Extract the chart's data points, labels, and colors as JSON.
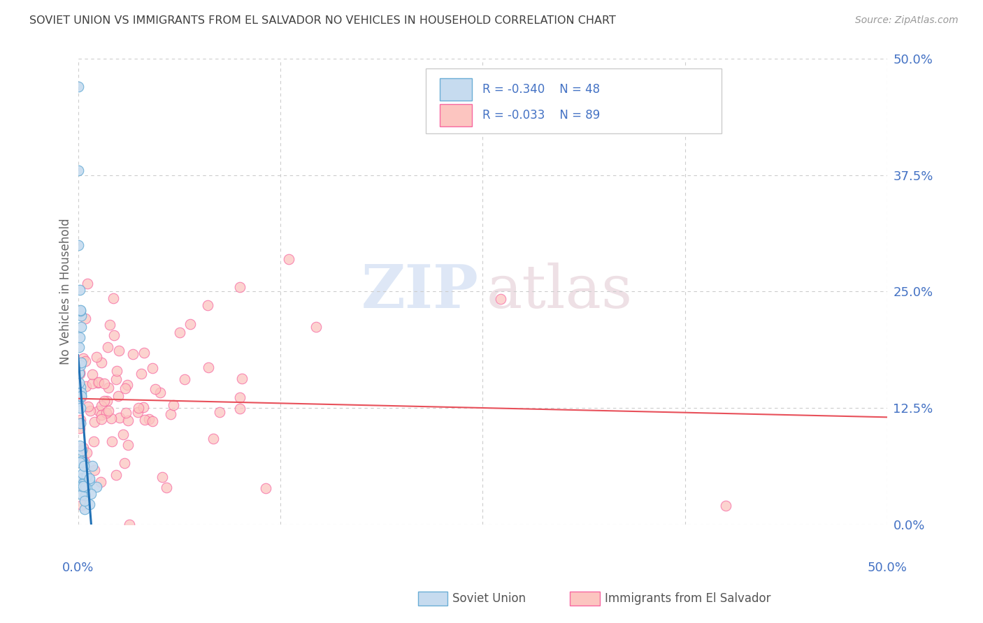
{
  "title": "SOVIET UNION VS IMMIGRANTS FROM EL SALVADOR NO VEHICLES IN HOUSEHOLD CORRELATION CHART",
  "source": "Source: ZipAtlas.com",
  "ylabel": "No Vehicles in Household",
  "ytick_labels": [
    "0.0%",
    "12.5%",
    "25.0%",
    "37.5%",
    "50.0%"
  ],
  "ytick_values": [
    0.0,
    0.125,
    0.25,
    0.375,
    0.5
  ],
  "xtick_labels": [
    "0.0%",
    "50.0%"
  ],
  "xtick_values": [
    0.0,
    0.5
  ],
  "xrange": [
    0.0,
    0.5
  ],
  "yrange": [
    0.0,
    0.5
  ],
  "blue_edge_color": "#6baed6",
  "blue_fill_color": "#c6dbef",
  "pink_edge_color": "#f768a1",
  "pink_fill_color": "#fcc5c0",
  "trend_blue_color": "#2171b5",
  "trend_pink_color": "#e8505a",
  "grid_color": "#cccccc",
  "bg_color": "#ffffff",
  "title_color": "#404040",
  "axis_label_color": "#4472c4",
  "right_ytick_color": "#4472c4",
  "legend_text_color": "#4472c4",
  "watermark_zip_color": "#c8d8f0",
  "watermark_atlas_color": "#e0c8d0"
}
